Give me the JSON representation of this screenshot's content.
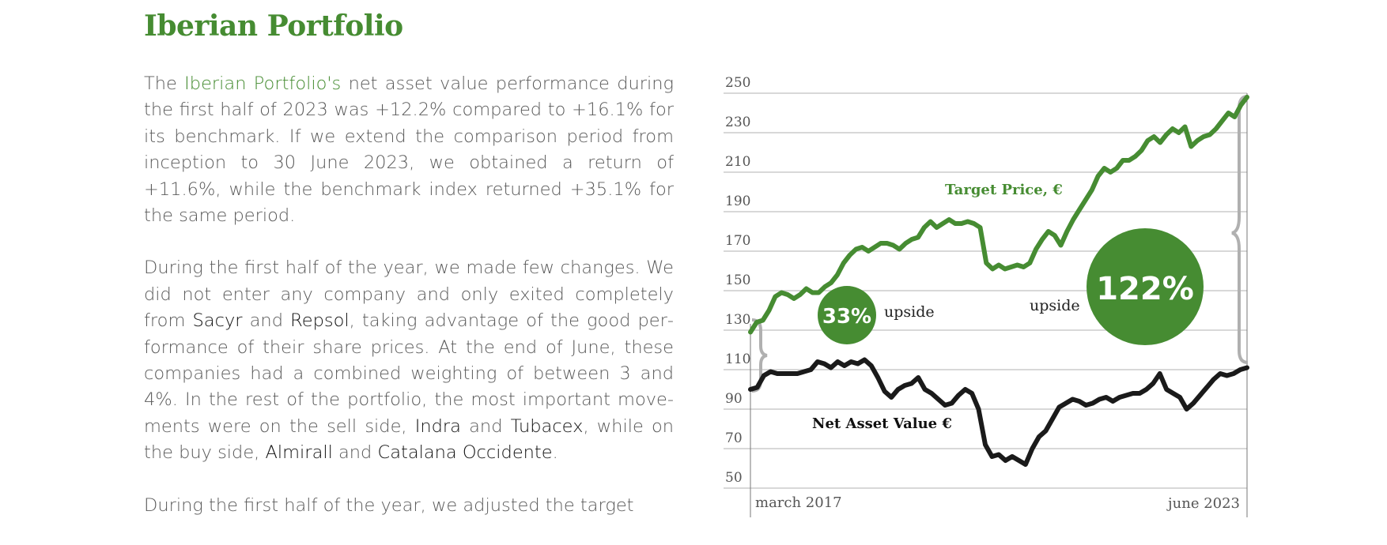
{
  "title": "Iberian Portfolio",
  "paragraphs": [
    [
      {
        "text": "The "
      },
      {
        "text": "Iberian Portfolio's",
        "style": "hl"
      },
      {
        "text": " net asset value performance du­ring the first half of 2023 was +12.2% compared to +16.1% for its benchmark. If we extend the comparison period from inception to 30 June 2023, we obtained a return of +11.6%, while the benchmark index returned +35.1% for the same period."
      }
    ],
    [
      {
        "text": "During the first half of the year, we made few changes. We did not enter any company and only exited completely from "
      },
      {
        "text": "Sacyr",
        "style": "co"
      },
      {
        "text": " and "
      },
      {
        "text": "Repsol",
        "style": "co"
      },
      {
        "text": ", taking advantage of the good per­formance of their share prices. At the end of June, these companies had a combined weighting of between 3 and 4%. In the rest of the portfolio, the most important move­ments were on the sell side, "
      },
      {
        "text": "Indra",
        "style": "co"
      },
      {
        "text": " and "
      },
      {
        "text": "Tubacex",
        "style": "co"
      },
      {
        "text": ", while on the buy side, "
      },
      {
        "text": "Almirall",
        "style": "co"
      },
      {
        "text": " and "
      },
      {
        "text": "Catalana Occidente",
        "style": "co"
      },
      {
        "text": "."
      }
    ],
    [
      {
        "text": "During the first half of the year, we adjusted the target"
      }
    ]
  ],
  "chart_data": {
    "type": "line",
    "x_labels": [
      "march 2017",
      "june 2023"
    ],
    "yticks": [
      250,
      230,
      210,
      190,
      170,
      150,
      130,
      110,
      90,
      70,
      50
    ],
    "ylim": [
      45,
      255
    ],
    "grid": true,
    "series": [
      {
        "name": "Target Price, €",
        "color": "#468c32",
        "values": [
          129,
          134,
          135,
          140,
          147,
          149,
          148,
          146,
          148,
          151,
          149,
          149,
          152,
          154,
          158,
          164,
          168,
          171,
          172,
          170,
          172,
          174,
          174,
          173,
          171,
          174,
          176,
          177,
          182,
          185,
          182,
          184,
          186,
          184,
          184,
          185,
          184,
          182,
          164,
          161,
          163,
          161,
          162,
          163,
          162,
          164,
          171,
          176,
          180,
          178,
          173,
          180,
          186,
          191,
          196,
          201,
          208,
          212,
          210,
          212,
          216,
          216,
          218,
          221,
          226,
          228,
          225,
          229,
          232,
          230,
          233,
          223,
          226,
          228,
          229,
          232,
          236,
          240,
          238,
          244,
          248
        ],
        "annotation": {
          "label": "upside",
          "value": "122%"
        }
      },
      {
        "name": "Net Asset Value €",
        "color": "#1a1a1a",
        "values": [
          100,
          101,
          107,
          109,
          108,
          108,
          108,
          108,
          109,
          110,
          114,
          113,
          111,
          114,
          112,
          114,
          113,
          115,
          112,
          106,
          99,
          96,
          100,
          102,
          103,
          106,
          100,
          98,
          95,
          92,
          93,
          97,
          100,
          98,
          90,
          72,
          66,
          67,
          64,
          66,
          64,
          62,
          70,
          76,
          79,
          85,
          91,
          93,
          95,
          94,
          92,
          93,
          95,
          96,
          94,
          96,
          97,
          98,
          98,
          100,
          103,
          108,
          100,
          98,
          96,
          90,
          93,
          97,
          101,
          105,
          108,
          107,
          108,
          110,
          111
        ],
        "annotation": {
          "label": "upside",
          "value": "33%"
        }
      }
    ],
    "colors": {
      "accent": "#468c32",
      "bracket": "#b0b0b0",
      "grid": "#cccccc"
    }
  }
}
